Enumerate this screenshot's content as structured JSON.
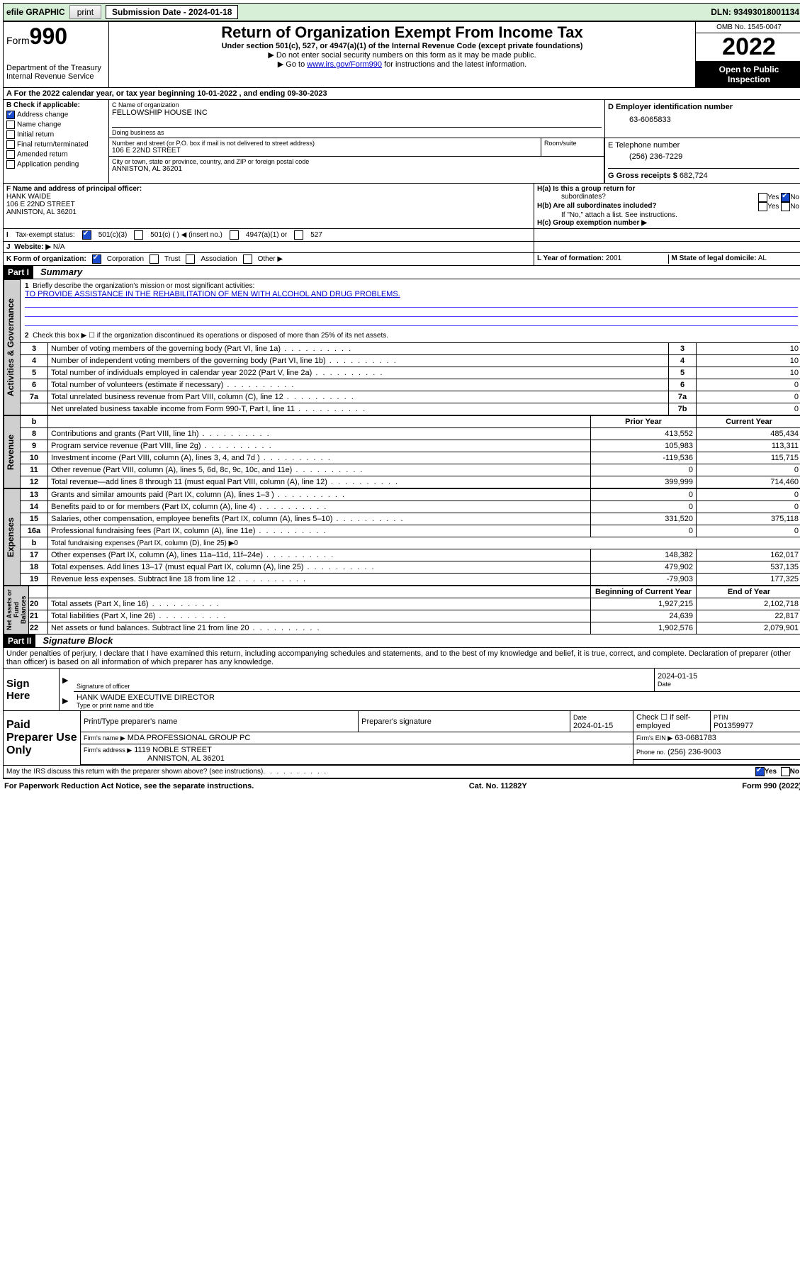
{
  "topbar": {
    "efile": "efile GRAPHIC",
    "print": "print",
    "sub_label": "Submission Date - 2024-01-18",
    "dln": "DLN: 93493018001134"
  },
  "header": {
    "form_word": "Form",
    "form_num": "990",
    "dept": "Department of the Treasury",
    "irs": "Internal Revenue Service",
    "title": "Return of Organization Exempt From Income Tax",
    "sub1": "Under section 501(c), 527, or 4947(a)(1) of the Internal Revenue Code (except private foundations)",
    "sub2": "▶ Do not enter social security numbers on this form as it may be made public.",
    "sub3_pre": "▶ Go to ",
    "sub3_link": "www.irs.gov/Form990",
    "sub3_post": " for instructions and the latest information.",
    "omb": "OMB No. 1545-0047",
    "year": "2022",
    "inspect1": "Open to Public",
    "inspect2": "Inspection"
  },
  "lineA": "For the 2022 calendar year, or tax year beginning 10-01-2022   , and ending 09-30-2023",
  "sectionB": {
    "hdr": "B Check if applicable:",
    "items": [
      "Address change",
      "Name change",
      "Initial return",
      "Final return/terminated",
      "Amended return",
      "Application pending"
    ],
    "checked_idx": 0
  },
  "sectionC": {
    "lbl": "C Name of organization",
    "name": "FELLOWSHIP HOUSE INC",
    "dba_lbl": "Doing business as",
    "dba": "",
    "addr_lbl": "Number and street (or P.O. box if mail is not delivered to street address)",
    "room_lbl": "Room/suite",
    "addr": "106 E 22ND STREET",
    "city_lbl": "City or town, state or province, country, and ZIP or foreign postal code",
    "city": "ANNISTON, AL  36201"
  },
  "sectionD": {
    "lbl": "D Employer identification number",
    "val": "63-6065833"
  },
  "sectionE": {
    "lbl": "E Telephone number",
    "val": "(256) 236-7229"
  },
  "sectionG": {
    "lbl": "G Gross receipts $",
    "val": "682,724"
  },
  "sectionF": {
    "lbl": "F  Name and address of principal officer:",
    "name": "HANK WAIDE",
    "addr1": "106 E 22ND STREET",
    "addr2": "ANNISTON, AL  36201"
  },
  "sectionH": {
    "a": "H(a)  Is this a group return for",
    "a2": "subordinates?",
    "b": "H(b)  Are all subordinates included?",
    "b_note": "If \"No,\" attach a list. See instructions.",
    "c": "H(c)  Group exemption number ▶",
    "yes": "Yes",
    "no": "No"
  },
  "sectionI": {
    "lbl": "Tax-exempt status:",
    "c3": "501(c)(3)",
    "c": "501(c) (  ) ◀ (insert no.)",
    "a1": "4947(a)(1) or",
    "s527": "527"
  },
  "sectionJ": {
    "lbl": "Website: ▶",
    "val": "N/A"
  },
  "sectionK": {
    "lbl": "K Form of organization:",
    "opts": [
      "Corporation",
      "Trust",
      "Association",
      "Other ▶"
    ],
    "checked_idx": 0
  },
  "sectionL": {
    "lbl": "L Year of formation:",
    "val": "2001"
  },
  "sectionM": {
    "lbl": "M State of legal domicile:",
    "val": "AL"
  },
  "part1": {
    "hdr": "Part I",
    "title": "Summary"
  },
  "summary": {
    "q1": "Briefly describe the organization's mission or most significant activities:",
    "mission": "TO PROVIDE ASSISTANCE IN THE REHABILITATION OF MEN WITH ALCOHOL AND DRUG PROBLEMS.",
    "q2": "Check this box ▶ ☐  if the organization discontinued its operations or disposed of more than 25% of its net assets.",
    "col_prior": "Prior Year",
    "col_curr": "Current Year",
    "col_begin": "Beginning of Current Year",
    "col_end": "End of Year",
    "gov": [
      {
        "n": "3",
        "t": "Number of voting members of the governing body (Part VI, line 1a)",
        "r": "3",
        "v": "10"
      },
      {
        "n": "4",
        "t": "Number of independent voting members of the governing body (Part VI, line 1b)",
        "r": "4",
        "v": "10"
      },
      {
        "n": "5",
        "t": "Total number of individuals employed in calendar year 2022 (Part V, line 2a)",
        "r": "5",
        "v": "10"
      },
      {
        "n": "6",
        "t": "Total number of volunteers (estimate if necessary)",
        "r": "6",
        "v": "0"
      },
      {
        "n": "7a",
        "t": "Total unrelated business revenue from Part VIII, column (C), line 12",
        "r": "7a",
        "v": "0"
      },
      {
        "n": "",
        "t": "Net unrelated business taxable income from Form 990-T, Part I, line 11",
        "r": "7b",
        "v": "0"
      }
    ],
    "rev": [
      {
        "n": "8",
        "t": "Contributions and grants (Part VIII, line 1h)",
        "p": "413,552",
        "c": "485,434"
      },
      {
        "n": "9",
        "t": "Program service revenue (Part VIII, line 2g)",
        "p": "105,983",
        "c": "113,311"
      },
      {
        "n": "10",
        "t": "Investment income (Part VIII, column (A), lines 3, 4, and 7d )",
        "p": "-119,536",
        "c": "115,715"
      },
      {
        "n": "11",
        "t": "Other revenue (Part VIII, column (A), lines 5, 6d, 8c, 9c, 10c, and 11e)",
        "p": "0",
        "c": "0"
      },
      {
        "n": "12",
        "t": "Total revenue—add lines 8 through 11 (must equal Part VIII, column (A), line 12)",
        "p": "399,999",
        "c": "714,460"
      }
    ],
    "exp": [
      {
        "n": "13",
        "t": "Grants and similar amounts paid (Part IX, column (A), lines 1–3 )",
        "p": "0",
        "c": "0"
      },
      {
        "n": "14",
        "t": "Benefits paid to or for members (Part IX, column (A), line 4)",
        "p": "0",
        "c": "0"
      },
      {
        "n": "15",
        "t": "Salaries, other compensation, employee benefits (Part IX, column (A), lines 5–10)",
        "p": "331,520",
        "c": "375,118"
      },
      {
        "n": "16a",
        "t": "Professional fundraising fees (Part IX, column (A), line 11e)",
        "p": "0",
        "c": "0"
      },
      {
        "n": "b",
        "t": "Total fundraising expenses (Part IX, column (D), line 25) ▶0",
        "p": "",
        "c": ""
      },
      {
        "n": "17",
        "t": "Other expenses (Part IX, column (A), lines 11a–11d, 11f–24e)",
        "p": "148,382",
        "c": "162,017"
      },
      {
        "n": "18",
        "t": "Total expenses. Add lines 13–17 (must equal Part IX, column (A), line 25)",
        "p": "479,902",
        "c": "537,135"
      },
      {
        "n": "19",
        "t": "Revenue less expenses. Subtract line 18 from line 12",
        "p": "-79,903",
        "c": "177,325"
      }
    ],
    "net": [
      {
        "n": "20",
        "t": "Total assets (Part X, line 16)",
        "p": "1,927,215",
        "c": "2,102,718"
      },
      {
        "n": "21",
        "t": "Total liabilities (Part X, line 26)",
        "p": "24,639",
        "c": "22,817"
      },
      {
        "n": "22",
        "t": "Net assets or fund balances. Subtract line 21 from line 20",
        "p": "1,902,576",
        "c": "2,079,901"
      }
    ],
    "vtabs": {
      "gov": "Activities & Governance",
      "rev": "Revenue",
      "exp": "Expenses",
      "net": "Net Assets or\nFund Balances"
    }
  },
  "part2": {
    "hdr": "Part II",
    "title": "Signature Block"
  },
  "penalties": "Under penalties of perjury, I declare that I have examined this return, including accompanying schedules and statements, and to the best of my knowledge and belief, it is true, correct, and complete. Declaration of preparer (other than officer) is based on all information of which preparer has any knowledge.",
  "sign": {
    "here": "Sign Here",
    "sig_lbl": "Signature of officer",
    "date_lbl": "Date",
    "date": "2024-01-15",
    "name": "HANK WAIDE  EXECUTIVE DIRECTOR",
    "name_lbl": "Type or print name and title"
  },
  "paid": {
    "hdr": "Paid Preparer Use Only",
    "col1": "Print/Type preparer's name",
    "col2": "Preparer's signature",
    "col3": "Date",
    "date": "2024-01-15",
    "col4": "Check ☐ if self-employed",
    "col5": "PTIN",
    "ptin": "P01359977",
    "firm_lbl": "Firm's name   ▶",
    "firm": "MDA PROFESSIONAL GROUP PC",
    "ein_lbl": "Firm's EIN ▶",
    "ein": "63-0681783",
    "addr_lbl": "Firm's address ▶",
    "addr1": "1119 NOBLE STREET",
    "addr2": "ANNISTON, AL  36201",
    "phone_lbl": "Phone no.",
    "phone": "(256) 236-9003"
  },
  "discuss": {
    "q": "May the IRS discuss this return with the preparer shown above? (see instructions)",
    "yes": "Yes",
    "no": "No"
  },
  "footer": {
    "l": "For Paperwork Reduction Act Notice, see the separate instructions.",
    "m": "Cat. No. 11282Y",
    "r": "Form 990 (2022)"
  }
}
